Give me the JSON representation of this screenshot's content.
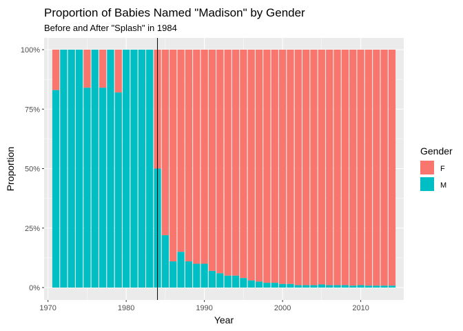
{
  "chart_data": {
    "type": "bar",
    "stacked": true,
    "normalized": true,
    "title": "Proportion of Babies Named \"Madison\" by Gender",
    "subtitle": "Before and After \"Splash\" in 1984",
    "xlabel": "Year",
    "ylabel": "Proportion",
    "xlim": [
      1969.5,
      2015.5
    ],
    "ylim": [
      0,
      1
    ],
    "x_ticks": [
      1970,
      1980,
      1990,
      2000,
      2010
    ],
    "x_tick_labels": [
      "1970",
      "1980",
      "1990",
      "2000",
      "2010"
    ],
    "y_ticks": [
      0,
      0.25,
      0.5,
      0.75,
      1.0
    ],
    "y_tick_labels": [
      "0%",
      "25%",
      "50%",
      "75%",
      "100%"
    ],
    "grid": true,
    "reference_line_x": 1984,
    "legend": {
      "title": "Gender",
      "position": "right"
    },
    "series": [
      {
        "name": "F",
        "color": "#F8766D"
      },
      {
        "name": "M",
        "color": "#00BFC4"
      }
    ],
    "x": [
      1971,
      1972,
      1973,
      1974,
      1975,
      1976,
      1977,
      1978,
      1979,
      1980,
      1981,
      1982,
      1983,
      1984,
      1985,
      1986,
      1987,
      1988,
      1989,
      1990,
      1991,
      1992,
      1993,
      1994,
      1995,
      1996,
      1997,
      1998,
      1999,
      2000,
      2001,
      2002,
      2003,
      2004,
      2005,
      2006,
      2007,
      2008,
      2009,
      2010,
      2011,
      2012,
      2013,
      2014
    ],
    "male_share": [
      0.83,
      1.0,
      1.0,
      1.0,
      0.84,
      1.0,
      0.84,
      1.0,
      0.82,
      1.0,
      1.0,
      1.0,
      1.0,
      0.5,
      0.22,
      0.11,
      0.15,
      0.11,
      0.1,
      0.1,
      0.07,
      0.06,
      0.05,
      0.05,
      0.04,
      0.03,
      0.025,
      0.02,
      0.02,
      0.015,
      0.015,
      0.01,
      0.01,
      0.01,
      0.013,
      0.01,
      0.01,
      0.01,
      0.008,
      0.01,
      0.008,
      0.008,
      0.008,
      0.008
    ]
  }
}
